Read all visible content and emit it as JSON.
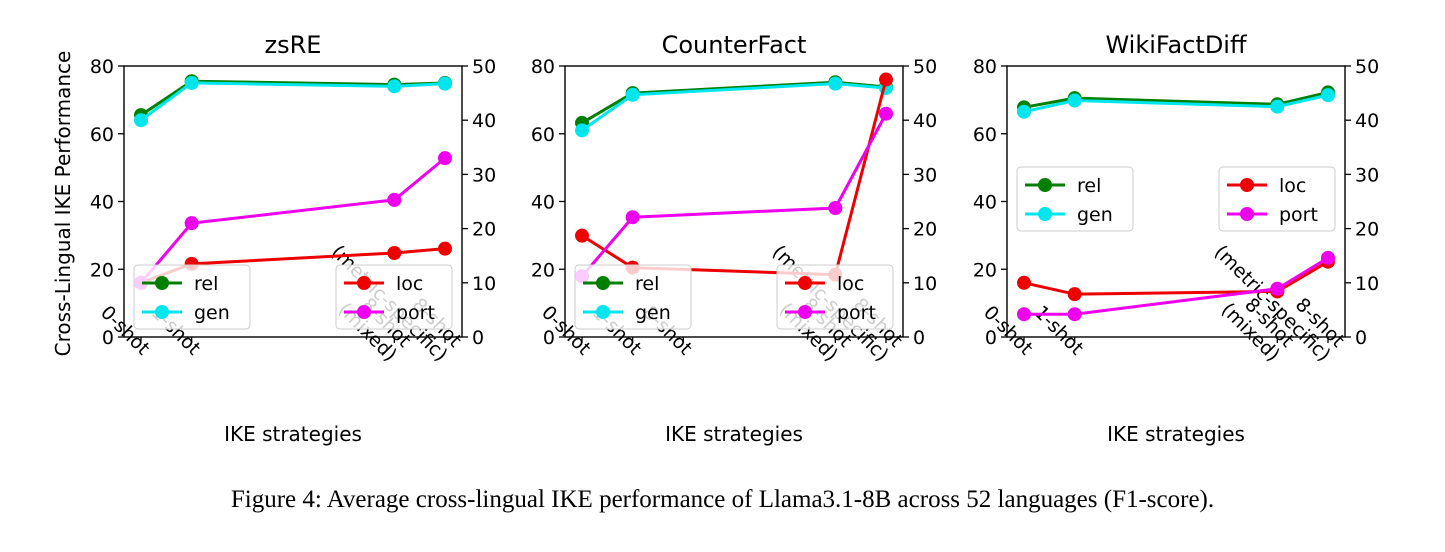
{
  "caption": "Figure 4: Average cross-lingual IKE performance of Llama3.1-8B across 52 languages (F1-score).",
  "colors": {
    "rel": "#007f00",
    "gen": "#00e5ee",
    "loc": "#ee0000",
    "port": "#ee00ee"
  },
  "chart_data": [
    {
      "type": "line",
      "title": "zsRE",
      "xlabel": "IKE strategies",
      "ylabel": "Cross-Lingual IKE Performance",
      "ylim": [
        0,
        80
      ],
      "ylim_right": [
        0,
        50
      ],
      "categories": [
        "0-shot",
        "1-shot",
        "8-shot\n(mixed)",
        "8-shot\n(metric-specific)"
      ],
      "x": [
        0,
        1,
        5,
        6
      ],
      "series": [
        {
          "name": "rel",
          "axis": "left",
          "values": [
            65.5,
            75.5,
            74.5,
            75.0
          ]
        },
        {
          "name": "gen",
          "axis": "left",
          "values": [
            64.0,
            75.0,
            74.0,
            74.8
          ]
        },
        {
          "name": "loc",
          "axis": "right",
          "values": [
            10.0,
            13.5,
            15.5,
            16.3
          ]
        },
        {
          "name": "port",
          "axis": "right",
          "values": [
            10.0,
            21.0,
            25.3,
            33.0
          ]
        }
      ],
      "legends": [
        {
          "position": "lower-left",
          "items": [
            "rel",
            "gen"
          ]
        },
        {
          "position": "lower-right",
          "items": [
            "loc",
            "port"
          ]
        }
      ]
    },
    {
      "type": "line",
      "title": "CounterFact",
      "xlabel": "IKE strategies",
      "ylabel": "",
      "ylim": [
        0,
        80
      ],
      "ylim_right": [
        0,
        50
      ],
      "categories": [
        "0-shot",
        "1-shot",
        "8-shot",
        "8-shot\n(mixed)",
        "8-shot\n(metric-specific)"
      ],
      "x": [
        0,
        1,
        2,
        5,
        6
      ],
      "series": [
        {
          "name": "rel",
          "axis": "left",
          "values": [
            63.2,
            72.0,
            null,
            75.2,
            73.8
          ]
        },
        {
          "name": "gen",
          "axis": "left",
          "values": [
            61.0,
            71.5,
            null,
            74.8,
            73.5
          ]
        },
        {
          "name": "loc",
          "axis": "right",
          "values": [
            18.7,
            12.8,
            null,
            11.5,
            47.5
          ]
        },
        {
          "name": "port",
          "axis": "right",
          "values": [
            11.2,
            22.1,
            null,
            23.8,
            41.2
          ]
        }
      ],
      "legends": [
        {
          "position": "lower-left",
          "items": [
            "rel",
            "gen"
          ]
        },
        {
          "position": "lower-right",
          "items": [
            "loc",
            "port"
          ]
        }
      ]
    },
    {
      "type": "line",
      "title": "WikiFactDiff",
      "xlabel": "IKE strategies",
      "ylabel": "",
      "ylim": [
        0,
        80
      ],
      "ylim_right": [
        0,
        50
      ],
      "categories": [
        "0-shot",
        "1-shot",
        "8-shot\n(mixed)",
        "8-shot\n(metric-specific)"
      ],
      "x": [
        0,
        1,
        5,
        6
      ],
      "series": [
        {
          "name": "rel",
          "axis": "left",
          "values": [
            67.8,
            70.5,
            68.7,
            72.2
          ]
        },
        {
          "name": "gen",
          "axis": "left",
          "values": [
            66.5,
            69.8,
            68.0,
            71.4
          ]
        },
        {
          "name": "loc",
          "axis": "right",
          "values": [
            10.0,
            7.9,
            8.4,
            13.9
          ]
        },
        {
          "name": "port",
          "axis": "right",
          "values": [
            4.2,
            4.2,
            8.9,
            14.6
          ]
        }
      ],
      "legends": [
        {
          "position": "center-left",
          "items": [
            "rel",
            "gen"
          ]
        },
        {
          "position": "center-right",
          "items": [
            "loc",
            "port"
          ]
        }
      ]
    }
  ]
}
